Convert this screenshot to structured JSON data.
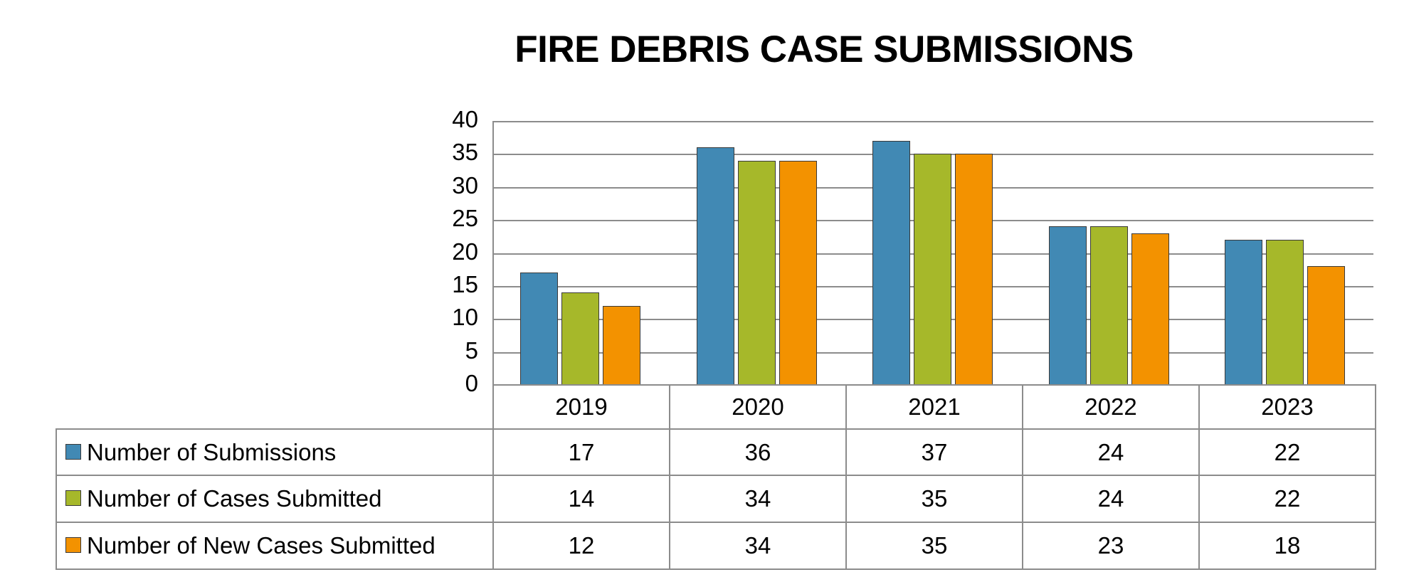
{
  "chart_data": {
    "type": "bar",
    "title": "FIRE DEBRIS CASE SUBMISSIONS",
    "xlabel": "",
    "ylabel": "",
    "ylim": [
      0,
      40
    ],
    "yticks": [
      "40",
      "35",
      "30",
      "25",
      "20",
      "15",
      "10",
      "5",
      "0"
    ],
    "grid": true,
    "legend_position": "data-table-left",
    "categories": [
      "2019",
      "2020",
      "2021",
      "2022",
      "2023"
    ],
    "series": [
      {
        "name": "Number of Submissions",
        "color": "#4189b4",
        "values": [
          17,
          36,
          37,
          24,
          22
        ]
      },
      {
        "name": "Number of Cases Submitted",
        "color": "#a6b82a",
        "values": [
          14,
          34,
          35,
          24,
          22
        ]
      },
      {
        "name": "Number of New Cases Submitted",
        "color": "#f39200",
        "values": [
          12,
          34,
          35,
          23,
          18
        ]
      }
    ]
  },
  "table": {
    "header": [
      "2019",
      "2020",
      "2021",
      "2022",
      "2023"
    ],
    "rows": [
      {
        "label": "Number of Submissions",
        "values": [
          "17",
          "36",
          "37",
          "24",
          "22"
        ]
      },
      {
        "label": "Number of Cases Submitted",
        "values": [
          "14",
          "34",
          "35",
          "24",
          "22"
        ]
      },
      {
        "label": "Number of New Cases Submitted",
        "values": [
          "12",
          "34",
          "35",
          "23",
          "18"
        ]
      }
    ]
  }
}
